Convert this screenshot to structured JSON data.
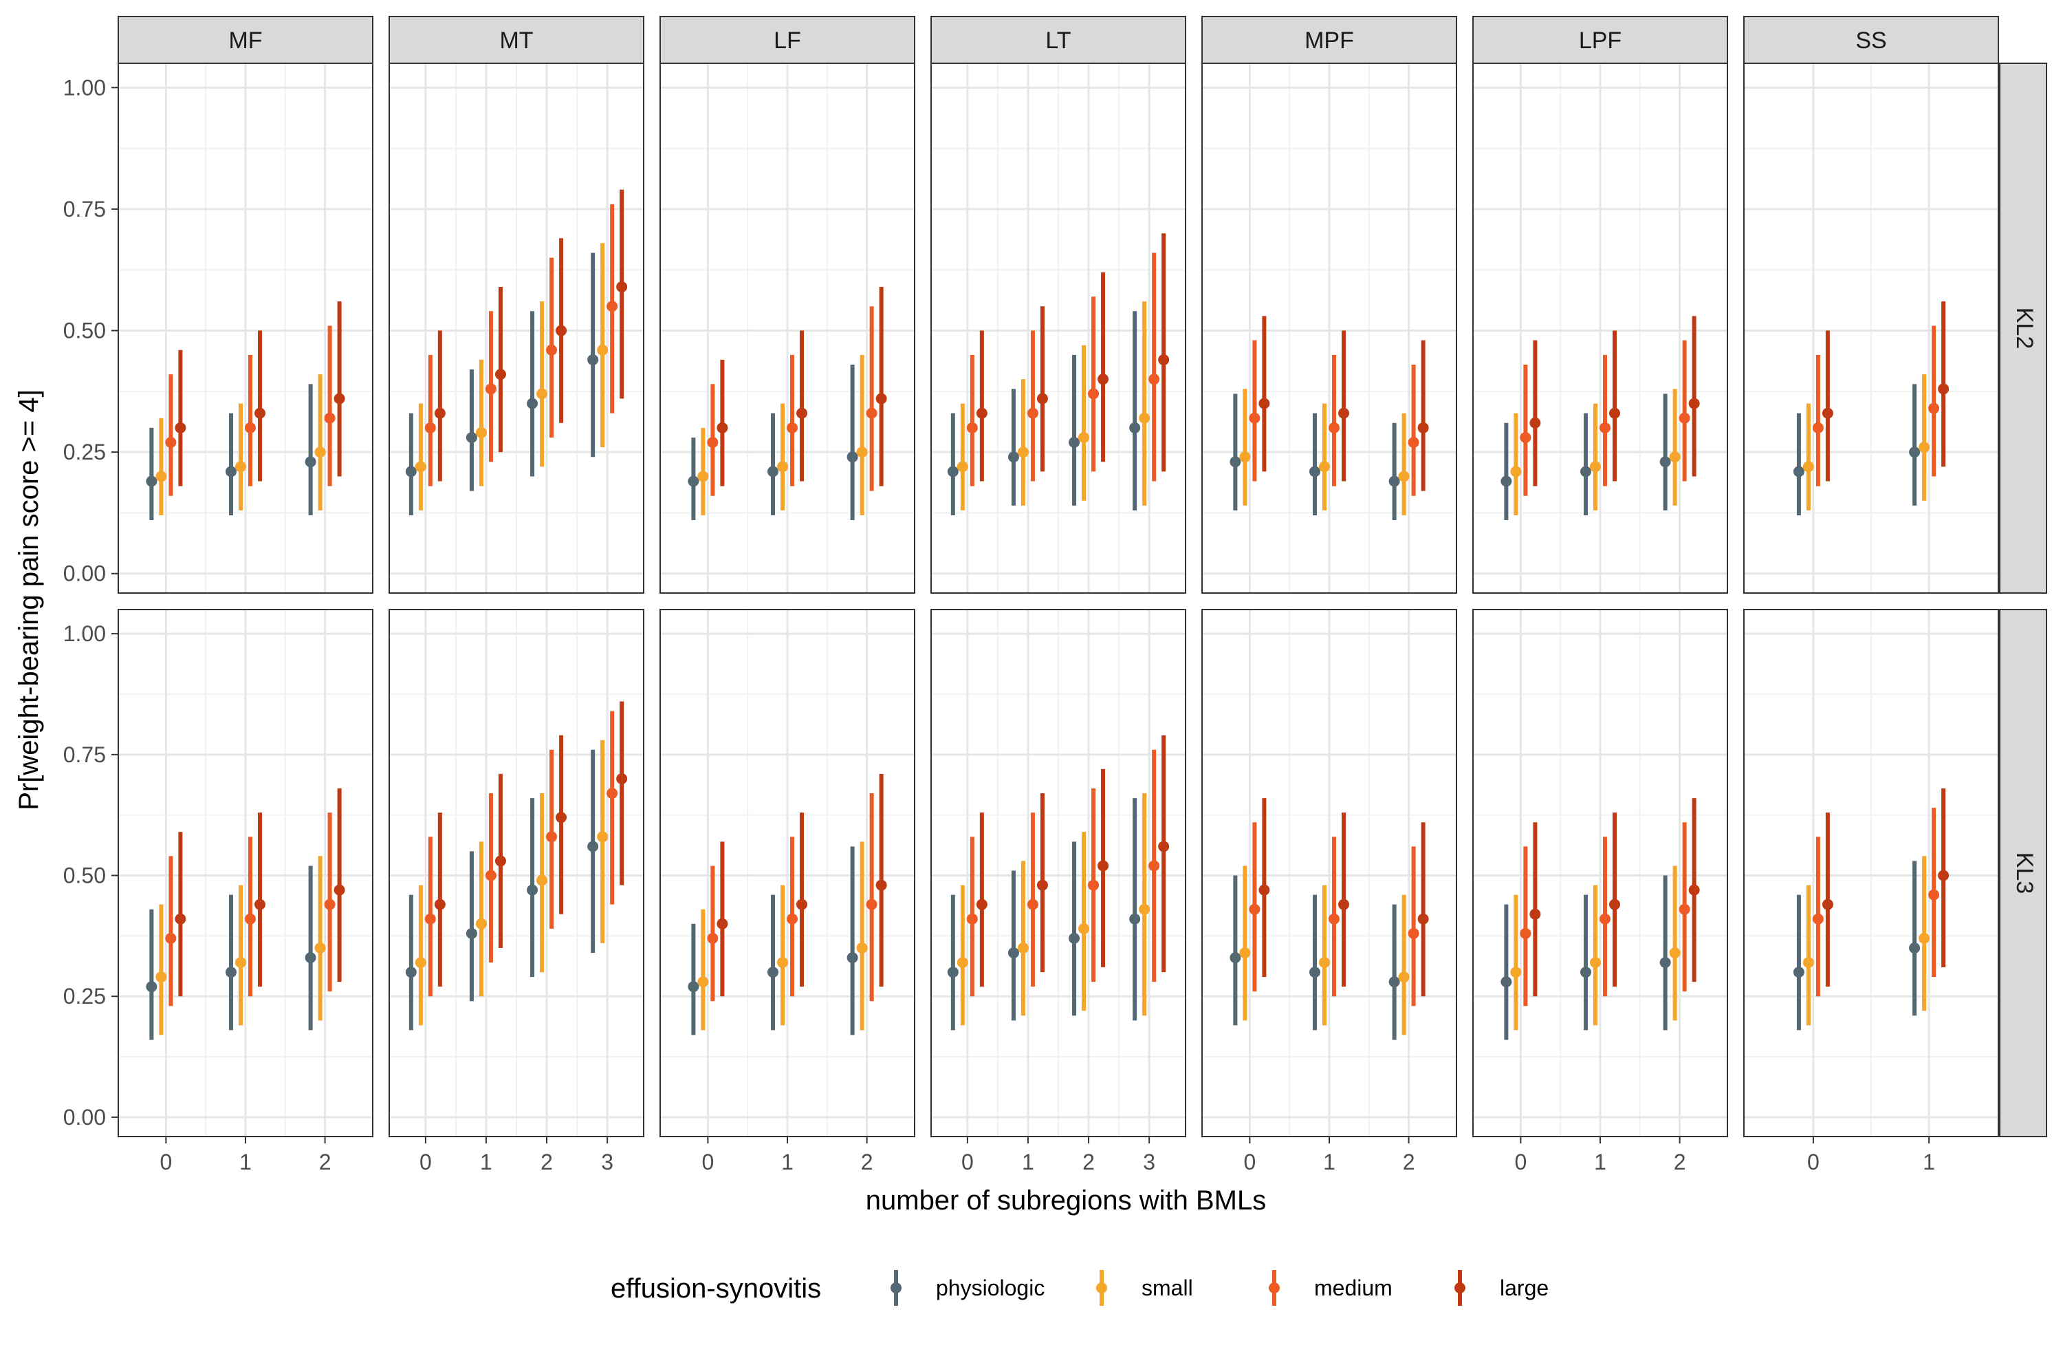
{
  "chart_data": {
    "type": "scatter",
    "subtype": "point-range (estimate with interval), faceted grid",
    "xlabel": "number of subregions with BMLs",
    "ylabel": "Pr[weight-bearing pain score >= 4]",
    "ylim": [
      -0.04,
      1.05
    ],
    "yticks": [
      "0.00",
      "0.25",
      "0.50",
      "0.75",
      "1.00"
    ],
    "grid": true,
    "legend": {
      "title": "effusion-synovitis",
      "placement": "bottom",
      "entries": [
        "physiologic",
        "small",
        "medium",
        "large"
      ]
    },
    "series_colors": {
      "physiologic": "#536872",
      "small": "#F4A52A",
      "medium": "#EE5A24",
      "large": "#BF3A12"
    },
    "strip_fill": "#d9d9d9",
    "columns": [
      "MF",
      "MT",
      "LF",
      "LT",
      "MPF",
      "LPF",
      "SS"
    ],
    "column_x_values": {
      "MF": [
        "0",
        "1",
        "2"
      ],
      "MT": [
        "0",
        "1",
        "2",
        "3"
      ],
      "LF": [
        "0",
        "1",
        "2"
      ],
      "LT": [
        "0",
        "1",
        "2",
        "3"
      ],
      "MPF": [
        "0",
        "1",
        "2"
      ],
      "LPF": [
        "0",
        "1",
        "2"
      ],
      "SS": [
        "0",
        "1"
      ]
    },
    "rows": [
      "KL2",
      "KL3"
    ],
    "series": [
      "physiologic",
      "small",
      "medium",
      "large"
    ],
    "panels": {
      "KL2": {
        "MF": [
          [
            [
              0.19,
              0.11,
              0.3
            ],
            [
              0.2,
              0.12,
              0.32
            ],
            [
              0.27,
              0.16,
              0.41
            ],
            [
              0.3,
              0.18,
              0.46
            ]
          ],
          [
            [
              0.21,
              0.12,
              0.33
            ],
            [
              0.22,
              0.13,
              0.35
            ],
            [
              0.3,
              0.18,
              0.45
            ],
            [
              0.33,
              0.19,
              0.5
            ]
          ],
          [
            [
              0.23,
              0.12,
              0.39
            ],
            [
              0.25,
              0.13,
              0.41
            ],
            [
              0.32,
              0.18,
              0.51
            ],
            [
              0.36,
              0.2,
              0.56
            ]
          ]
        ],
        "MT": [
          [
            [
              0.21,
              0.12,
              0.33
            ],
            [
              0.22,
              0.13,
              0.35
            ],
            [
              0.3,
              0.18,
              0.45
            ],
            [
              0.33,
              0.19,
              0.5
            ]
          ],
          [
            [
              0.28,
              0.17,
              0.42
            ],
            [
              0.29,
              0.18,
              0.44
            ],
            [
              0.38,
              0.23,
              0.54
            ],
            [
              0.41,
              0.25,
              0.59
            ]
          ],
          [
            [
              0.35,
              0.2,
              0.54
            ],
            [
              0.37,
              0.22,
              0.56
            ],
            [
              0.46,
              0.28,
              0.65
            ],
            [
              0.5,
              0.31,
              0.69
            ]
          ],
          [
            [
              0.44,
              0.24,
              0.66
            ],
            [
              0.46,
              0.26,
              0.68
            ],
            [
              0.55,
              0.33,
              0.76
            ],
            [
              0.59,
              0.36,
              0.79
            ]
          ]
        ],
        "LF": [
          [
            [
              0.19,
              0.11,
              0.28
            ],
            [
              0.2,
              0.12,
              0.3
            ],
            [
              0.27,
              0.16,
              0.39
            ],
            [
              0.3,
              0.18,
              0.44
            ]
          ],
          [
            [
              0.21,
              0.12,
              0.33
            ],
            [
              0.22,
              0.13,
              0.35
            ],
            [
              0.3,
              0.18,
              0.45
            ],
            [
              0.33,
              0.19,
              0.5
            ]
          ],
          [
            [
              0.24,
              0.11,
              0.43
            ],
            [
              0.25,
              0.12,
              0.45
            ],
            [
              0.33,
              0.17,
              0.55
            ],
            [
              0.36,
              0.18,
              0.59
            ]
          ]
        ],
        "LT": [
          [
            [
              0.21,
              0.12,
              0.33
            ],
            [
              0.22,
              0.13,
              0.35
            ],
            [
              0.3,
              0.18,
              0.45
            ],
            [
              0.33,
              0.19,
              0.5
            ]
          ],
          [
            [
              0.24,
              0.14,
              0.38
            ],
            [
              0.25,
              0.14,
              0.4
            ],
            [
              0.33,
              0.19,
              0.5
            ],
            [
              0.36,
              0.21,
              0.55
            ]
          ],
          [
            [
              0.27,
              0.14,
              0.45
            ],
            [
              0.28,
              0.15,
              0.47
            ],
            [
              0.37,
              0.21,
              0.57
            ],
            [
              0.4,
              0.23,
              0.62
            ]
          ],
          [
            [
              0.3,
              0.13,
              0.54
            ],
            [
              0.32,
              0.14,
              0.56
            ],
            [
              0.4,
              0.19,
              0.66
            ],
            [
              0.44,
              0.21,
              0.7
            ]
          ]
        ],
        "MPF": [
          [
            [
              0.23,
              0.13,
              0.37
            ],
            [
              0.24,
              0.14,
              0.38
            ],
            [
              0.32,
              0.19,
              0.48
            ],
            [
              0.35,
              0.21,
              0.53
            ]
          ],
          [
            [
              0.21,
              0.12,
              0.33
            ],
            [
              0.22,
              0.13,
              0.35
            ],
            [
              0.3,
              0.18,
              0.45
            ],
            [
              0.33,
              0.19,
              0.5
            ]
          ],
          [
            [
              0.19,
              0.11,
              0.31
            ],
            [
              0.2,
              0.12,
              0.33
            ],
            [
              0.27,
              0.16,
              0.43
            ],
            [
              0.3,
              0.17,
              0.48
            ]
          ]
        ],
        "LPF": [
          [
            [
              0.19,
              0.11,
              0.31
            ],
            [
              0.21,
              0.12,
              0.33
            ],
            [
              0.28,
              0.16,
              0.43
            ],
            [
              0.31,
              0.18,
              0.48
            ]
          ],
          [
            [
              0.21,
              0.12,
              0.33
            ],
            [
              0.22,
              0.13,
              0.35
            ],
            [
              0.3,
              0.18,
              0.45
            ],
            [
              0.33,
              0.19,
              0.5
            ]
          ],
          [
            [
              0.23,
              0.13,
              0.37
            ],
            [
              0.24,
              0.14,
              0.38
            ],
            [
              0.32,
              0.19,
              0.48
            ],
            [
              0.35,
              0.2,
              0.53
            ]
          ]
        ],
        "SS": [
          [
            [
              0.21,
              0.12,
              0.33
            ],
            [
              0.22,
              0.13,
              0.35
            ],
            [
              0.3,
              0.18,
              0.45
            ],
            [
              0.33,
              0.19,
              0.5
            ]
          ],
          [
            [
              0.25,
              0.14,
              0.39
            ],
            [
              0.26,
              0.15,
              0.41
            ],
            [
              0.34,
              0.2,
              0.51
            ],
            [
              0.38,
              0.22,
              0.56
            ]
          ]
        ]
      },
      "KL3": {
        "MF": [
          [
            [
              0.27,
              0.16,
              0.43
            ],
            [
              0.29,
              0.17,
              0.44
            ],
            [
              0.37,
              0.23,
              0.54
            ],
            [
              0.41,
              0.25,
              0.59
            ]
          ],
          [
            [
              0.3,
              0.18,
              0.46
            ],
            [
              0.32,
              0.19,
              0.48
            ],
            [
              0.41,
              0.25,
              0.58
            ],
            [
              0.44,
              0.27,
              0.63
            ]
          ],
          [
            [
              0.33,
              0.18,
              0.52
            ],
            [
              0.35,
              0.2,
              0.54
            ],
            [
              0.44,
              0.26,
              0.63
            ],
            [
              0.47,
              0.28,
              0.68
            ]
          ]
        ],
        "MT": [
          [
            [
              0.3,
              0.18,
              0.46
            ],
            [
              0.32,
              0.19,
              0.48
            ],
            [
              0.41,
              0.25,
              0.58
            ],
            [
              0.44,
              0.27,
              0.63
            ]
          ],
          [
            [
              0.38,
              0.24,
              0.55
            ],
            [
              0.4,
              0.25,
              0.57
            ],
            [
              0.5,
              0.32,
              0.67
            ],
            [
              0.53,
              0.35,
              0.71
            ]
          ],
          [
            [
              0.47,
              0.29,
              0.66
            ],
            [
              0.49,
              0.3,
              0.67
            ],
            [
              0.58,
              0.39,
              0.76
            ],
            [
              0.62,
              0.42,
              0.79
            ]
          ],
          [
            [
              0.56,
              0.34,
              0.76
            ],
            [
              0.58,
              0.36,
              0.78
            ],
            [
              0.67,
              0.44,
              0.84
            ],
            [
              0.7,
              0.48,
              0.86
            ]
          ]
        ],
        "LF": [
          [
            [
              0.27,
              0.17,
              0.4
            ],
            [
              0.28,
              0.18,
              0.43
            ],
            [
              0.37,
              0.24,
              0.52
            ],
            [
              0.4,
              0.25,
              0.57
            ]
          ],
          [
            [
              0.3,
              0.18,
              0.46
            ],
            [
              0.32,
              0.19,
              0.48
            ],
            [
              0.41,
              0.25,
              0.58
            ],
            [
              0.44,
              0.27,
              0.63
            ]
          ],
          [
            [
              0.33,
              0.17,
              0.56
            ],
            [
              0.35,
              0.18,
              0.57
            ],
            [
              0.44,
              0.24,
              0.67
            ],
            [
              0.48,
              0.27,
              0.71
            ]
          ]
        ],
        "LT": [
          [
            [
              0.3,
              0.18,
              0.46
            ],
            [
              0.32,
              0.19,
              0.48
            ],
            [
              0.41,
              0.25,
              0.58
            ],
            [
              0.44,
              0.27,
              0.63
            ]
          ],
          [
            [
              0.34,
              0.2,
              0.51
            ],
            [
              0.35,
              0.21,
              0.53
            ],
            [
              0.44,
              0.27,
              0.63
            ],
            [
              0.48,
              0.3,
              0.67
            ]
          ],
          [
            [
              0.37,
              0.21,
              0.57
            ],
            [
              0.39,
              0.22,
              0.59
            ],
            [
              0.48,
              0.28,
              0.68
            ],
            [
              0.52,
              0.31,
              0.72
            ]
          ],
          [
            [
              0.41,
              0.2,
              0.66
            ],
            [
              0.43,
              0.21,
              0.67
            ],
            [
              0.52,
              0.28,
              0.76
            ],
            [
              0.56,
              0.3,
              0.79
            ]
          ]
        ],
        "MPF": [
          [
            [
              0.33,
              0.19,
              0.5
            ],
            [
              0.34,
              0.2,
              0.52
            ],
            [
              0.43,
              0.26,
              0.61
            ],
            [
              0.47,
              0.29,
              0.66
            ]
          ],
          [
            [
              0.3,
              0.18,
              0.46
            ],
            [
              0.32,
              0.19,
              0.48
            ],
            [
              0.41,
              0.25,
              0.58
            ],
            [
              0.44,
              0.27,
              0.63
            ]
          ],
          [
            [
              0.28,
              0.16,
              0.44
            ],
            [
              0.29,
              0.17,
              0.46
            ],
            [
              0.38,
              0.23,
              0.56
            ],
            [
              0.41,
              0.25,
              0.61
            ]
          ]
        ],
        "LPF": [
          [
            [
              0.28,
              0.16,
              0.44
            ],
            [
              0.3,
              0.18,
              0.46
            ],
            [
              0.38,
              0.23,
              0.56
            ],
            [
              0.42,
              0.25,
              0.61
            ]
          ],
          [
            [
              0.3,
              0.18,
              0.46
            ],
            [
              0.32,
              0.19,
              0.48
            ],
            [
              0.41,
              0.25,
              0.58
            ],
            [
              0.44,
              0.27,
              0.63
            ]
          ],
          [
            [
              0.32,
              0.18,
              0.5
            ],
            [
              0.34,
              0.2,
              0.52
            ],
            [
              0.43,
              0.26,
              0.61
            ],
            [
              0.47,
              0.28,
              0.66
            ]
          ]
        ],
        "SS": [
          [
            [
              0.3,
              0.18,
              0.46
            ],
            [
              0.32,
              0.19,
              0.48
            ],
            [
              0.41,
              0.25,
              0.58
            ],
            [
              0.44,
              0.27,
              0.63
            ]
          ],
          [
            [
              0.35,
              0.21,
              0.53
            ],
            [
              0.37,
              0.22,
              0.54
            ],
            [
              0.46,
              0.29,
              0.64
            ],
            [
              0.5,
              0.31,
              0.68
            ]
          ]
        ]
      }
    }
  }
}
